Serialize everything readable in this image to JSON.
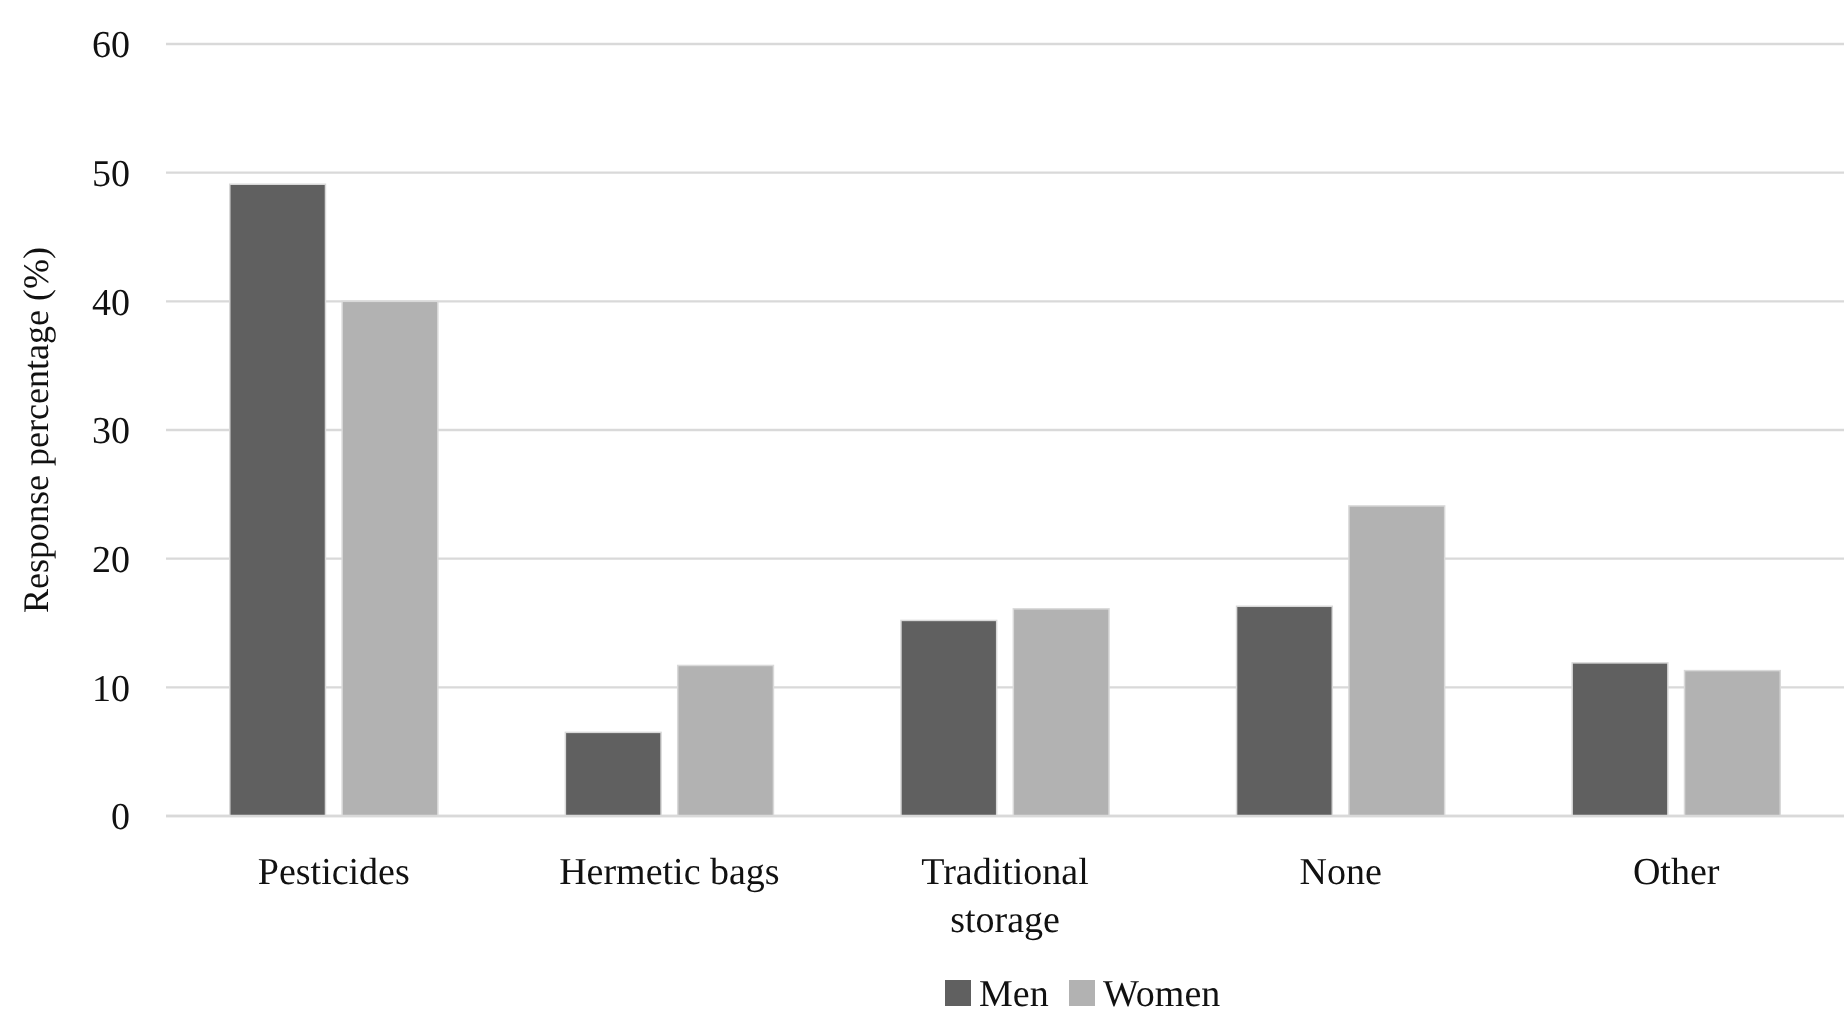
{
  "chart_data": {
    "type": "bar",
    "ylabel": "Response percentage (%)",
    "categories": [
      "Pesticides",
      "Hermetic bags",
      "Traditional storage",
      "None",
      "Other"
    ],
    "series": [
      {
        "name": "Men",
        "color": "#606060",
        "values": [
          49.1,
          6.5,
          15.2,
          16.3,
          11.9
        ]
      },
      {
        "name": "Women",
        "color": "#b2b2b2",
        "values": [
          40.0,
          11.7,
          16.1,
          24.1,
          11.3
        ]
      }
    ],
    "ylim": [
      0,
      60
    ],
    "yticks": [
      0,
      10,
      20,
      30,
      40,
      50,
      60
    ],
    "grid": "y",
    "legend": "bottom"
  }
}
